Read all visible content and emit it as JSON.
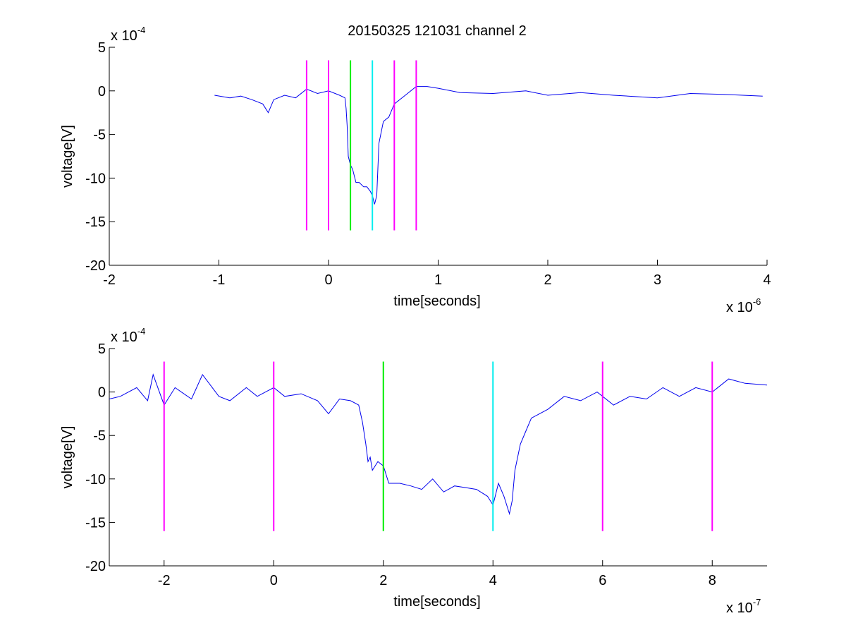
{
  "figure_title": "20150325 121031 channel 2",
  "chart_data": [
    {
      "type": "line",
      "title": "20150325 121031 channel 2",
      "xlabel": "time[seconds]",
      "ylabel": "voltage[V]",
      "x_multiplier": "x 10",
      "x_exponent": "-6",
      "y_multiplier": "x 10",
      "y_exponent": "-4",
      "xlim": [
        -2,
        4
      ],
      "ylim": [
        -20,
        5
      ],
      "xticks": [
        -2,
        -1,
        0,
        1,
        2,
        3,
        4
      ],
      "yticks": [
        -20,
        -15,
        -10,
        -5,
        0,
        5
      ],
      "grid": false,
      "series": [
        {
          "color": "#0000ee",
          "x": [
            -1.04,
            -0.9,
            -0.8,
            -0.7,
            -0.6,
            -0.55,
            -0.5,
            -0.4,
            -0.3,
            -0.2,
            -0.1,
            0.0,
            0.1,
            0.15,
            0.16,
            0.17,
            0.18,
            0.2,
            0.22,
            0.25,
            0.28,
            0.32,
            0.35,
            0.38,
            0.4,
            0.42,
            0.44,
            0.46,
            0.5,
            0.55,
            0.6,
            0.7,
            0.8,
            0.9,
            1.0,
            1.2,
            1.5,
            1.8,
            2.0,
            2.3,
            2.6,
            3.0,
            3.3,
            3.6,
            3.96
          ],
          "y": [
            -0.5,
            -0.8,
            -0.6,
            -1.0,
            -1.5,
            -2.5,
            -1.0,
            -0.5,
            -0.8,
            0.2,
            -0.3,
            0.0,
            -0.5,
            -0.8,
            -2.0,
            -4.0,
            -7.5,
            -8.5,
            -9.0,
            -10.5,
            -10.5,
            -11.0,
            -11.0,
            -11.5,
            -12.0,
            -13.0,
            -12.0,
            -6.0,
            -3.5,
            -3.0,
            -1.5,
            -0.5,
            0.5,
            0.5,
            0.3,
            -0.2,
            -0.3,
            0.0,
            -0.5,
            -0.2,
            -0.5,
            -0.8,
            -0.3,
            -0.4,
            -0.6
          ]
        }
      ],
      "markers": [
        {
          "x": -0.2,
          "color": "#ff00ff",
          "ymin": -16,
          "ymax": 3.5
        },
        {
          "x": 0.0,
          "color": "#ff00ff",
          "ymin": -16,
          "ymax": 3.5
        },
        {
          "x": 0.2,
          "color": "#00ee00",
          "ymin": -16,
          "ymax": 3.5
        },
        {
          "x": 0.4,
          "color": "#00eeee",
          "ymin": -16,
          "ymax": 3.5
        },
        {
          "x": 0.6,
          "color": "#ff00ff",
          "ymin": -16,
          "ymax": 3.5
        },
        {
          "x": 0.8,
          "color": "#ff00ff",
          "ymin": -16,
          "ymax": 3.5
        }
      ]
    },
    {
      "type": "line",
      "title": "",
      "xlabel": "time[seconds]",
      "ylabel": "voltage[V]",
      "x_multiplier": "x 10",
      "x_exponent": "-7",
      "y_multiplier": "x 10",
      "y_exponent": "-4",
      "xlim": [
        -3,
        9
      ],
      "ylim": [
        -20,
        5
      ],
      "xticks": [
        -2,
        0,
        2,
        4,
        6,
        8
      ],
      "yticks": [
        -20,
        -15,
        -10,
        -5,
        0,
        5
      ],
      "grid": false,
      "series": [
        {
          "color": "#0000ee",
          "x": [
            -3.0,
            -2.8,
            -2.5,
            -2.3,
            -2.2,
            -2.0,
            -1.8,
            -1.5,
            -1.3,
            -1.0,
            -0.8,
            -0.5,
            -0.3,
            0.0,
            0.2,
            0.5,
            0.8,
            1.0,
            1.2,
            1.4,
            1.55,
            1.62,
            1.68,
            1.72,
            1.76,
            1.8,
            1.9,
            2.0,
            2.1,
            2.3,
            2.5,
            2.7,
            2.9,
            3.1,
            3.3,
            3.5,
            3.7,
            3.9,
            4.0,
            4.1,
            4.2,
            4.3,
            4.35,
            4.4,
            4.5,
            4.6,
            4.7,
            5.0,
            5.3,
            5.6,
            5.9,
            6.2,
            6.5,
            6.8,
            7.1,
            7.4,
            7.7,
            8.0,
            8.3,
            8.6,
            9.0
          ],
          "y": [
            -0.8,
            -0.5,
            0.5,
            -1.0,
            2.0,
            -1.5,
            0.5,
            -0.8,
            2.0,
            -0.5,
            -1.0,
            0.5,
            -0.5,
            0.5,
            -0.5,
            -0.2,
            -1.0,
            -2.5,
            -0.8,
            -1.0,
            -1.5,
            -3.5,
            -6.0,
            -8.0,
            -7.5,
            -9.0,
            -8.0,
            -8.5,
            -10.5,
            -10.5,
            -10.8,
            -11.2,
            -10.0,
            -11.5,
            -10.8,
            -11.0,
            -11.2,
            -12.0,
            -13.0,
            -10.5,
            -12.0,
            -14.0,
            -12.5,
            -9.0,
            -6.0,
            -4.5,
            -3.0,
            -2.0,
            -0.5,
            -1.0,
            0.0,
            -1.5,
            -0.5,
            -0.8,
            0.5,
            -0.5,
            0.5,
            0.0,
            1.5,
            1.0,
            0.8
          ]
        }
      ],
      "markers": [
        {
          "x": -2,
          "color": "#ff00ff",
          "ymin": -16,
          "ymax": 3.5
        },
        {
          "x": 0,
          "color": "#ff00ff",
          "ymin": -16,
          "ymax": 3.5
        },
        {
          "x": 2,
          "color": "#00ee00",
          "ymin": -16,
          "ymax": 3.5
        },
        {
          "x": 4,
          "color": "#00eeee",
          "ymin": -16,
          "ymax": 3.5
        },
        {
          "x": 6,
          "color": "#ff00ff",
          "ymin": -16,
          "ymax": 3.5
        },
        {
          "x": 8,
          "color": "#ff00ff",
          "ymin": -16,
          "ymax": 3.5
        }
      ]
    }
  ]
}
